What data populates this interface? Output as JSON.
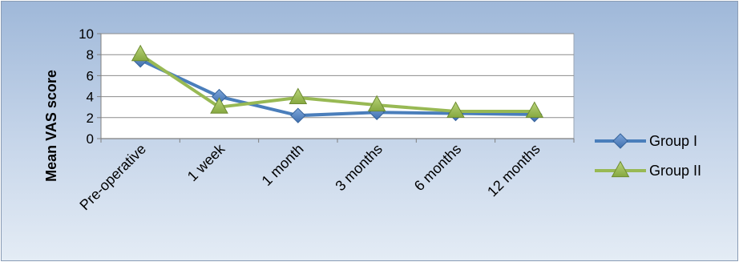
{
  "chart_data": {
    "type": "line",
    "title": "",
    "xlabel": "",
    "ylabel": "Mean VAS score",
    "ylim": [
      0,
      10
    ],
    "yticks": [
      0,
      2,
      4,
      6,
      8,
      10
    ],
    "categories": [
      "Pre-operative",
      "1 week",
      "1 month",
      "3 months",
      "6 months",
      "12 months"
    ],
    "series": [
      {
        "name": "Group I",
        "values": [
          7.5,
          4.0,
          2.2,
          2.5,
          2.4,
          2.3
        ],
        "color": "#4a7ebb",
        "marker": "diamond"
      },
      {
        "name": "Group II",
        "values": [
          8.0,
          3.0,
          3.9,
          3.2,
          2.6,
          2.6
        ],
        "color": "#98b954",
        "marker": "triangle"
      }
    ],
    "grid": true,
    "legend_position": "right"
  }
}
